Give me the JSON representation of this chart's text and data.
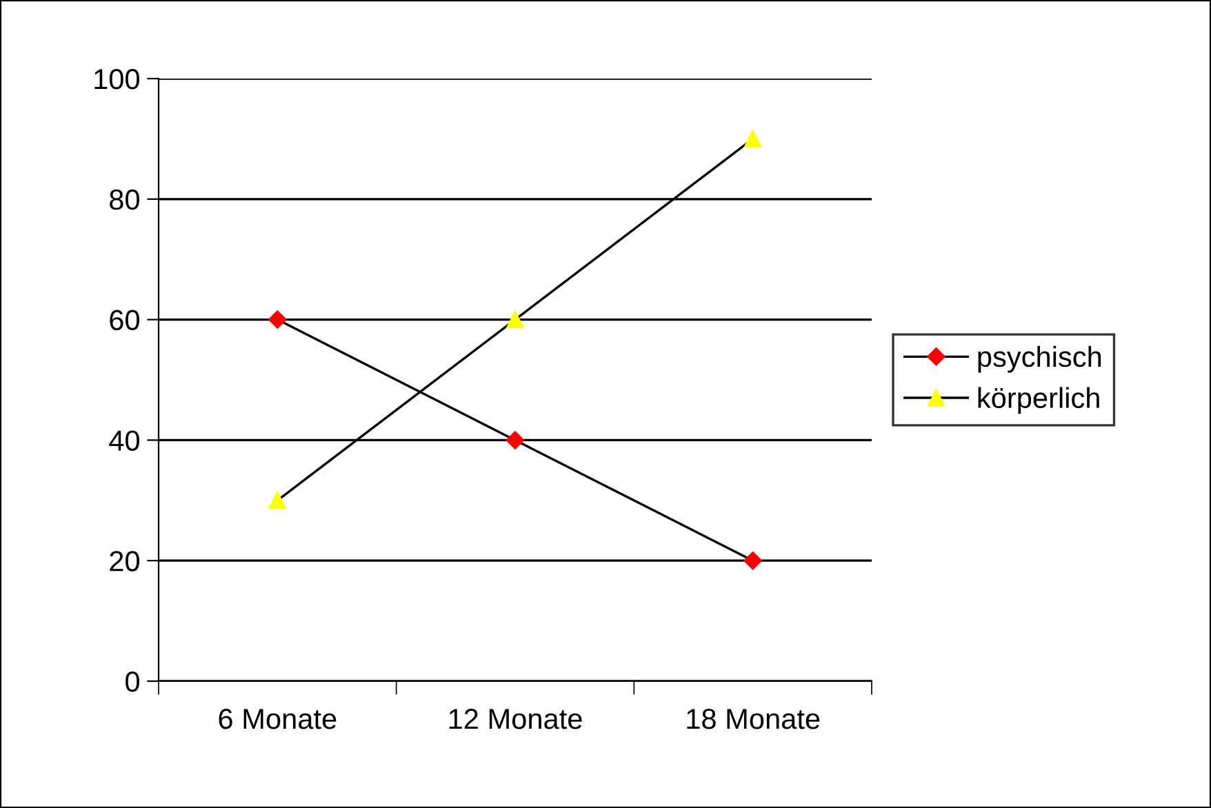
{
  "chart_data": {
    "type": "line",
    "categories": [
      "6 Monate",
      "12 Monate",
      "18 Monate"
    ],
    "series": [
      {
        "name": "psychisch",
        "color": "#ff0000",
        "values": [
          60,
          40,
          20
        ],
        "marker": "diamond"
      },
      {
        "name": "körperlich",
        "color": "#ffff00",
        "values": [
          30,
          60,
          90
        ],
        "marker": "triangle"
      }
    ],
    "ylim": [
      0,
      100
    ],
    "yticks": [
      0,
      20,
      40,
      60,
      80,
      100
    ],
    "grid": "y",
    "legend": "right",
    "line_style": "solid"
  }
}
